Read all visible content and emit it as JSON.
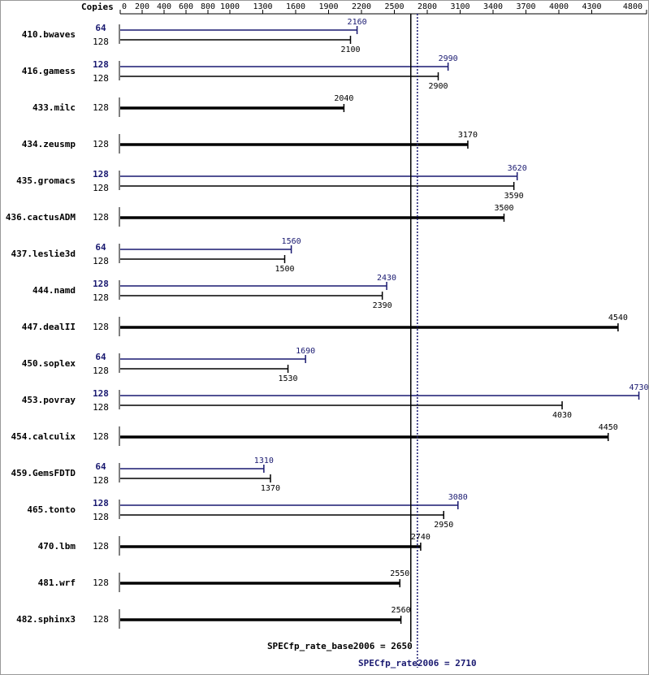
{
  "chart_data": {
    "type": "bar",
    "orientation": "horizontal",
    "axis_label": "Copies",
    "xlim": [
      0,
      4800
    ],
    "xticks": [
      0,
      200,
      400,
      600,
      800,
      1000,
      1300,
      1600,
      1900,
      2200,
      2500,
      2800,
      3100,
      3400,
      3700,
      4000,
      4300,
      4800
    ],
    "categories": [
      "410.bwaves",
      "416.gamess",
      "433.milc",
      "434.zeusmp",
      "435.gromacs",
      "436.cactusADM",
      "437.leslie3d",
      "444.namd",
      "447.dealII",
      "450.soplex",
      "453.povray",
      "454.calculix",
      "459.GemsFDTD",
      "465.tonto",
      "470.lbm",
      "481.wrf",
      "482.sphinx3"
    ],
    "series": [
      {
        "color": "#000000",
        "copies": [
          128,
          128,
          128,
          128,
          128,
          128,
          128,
          128,
          128,
          128,
          128,
          128,
          128,
          128,
          128,
          128,
          128
        ],
        "values": [
          2100,
          2900,
          2040,
          3170,
          3590,
          3500,
          1500,
          2390,
          4540,
          1530,
          4030,
          4450,
          1370,
          2950,
          2740,
          2550,
          2560
        ]
      },
      {
        "color": "#191970",
        "copies": [
          64,
          128,
          null,
          null,
          128,
          null,
          64,
          128,
          null,
          64,
          128,
          null,
          64,
          128,
          null,
          null,
          null
        ],
        "values": [
          2160,
          2990,
          null,
          null,
          3620,
          null,
          1560,
          2430,
          null,
          1690,
          4730,
          null,
          1310,
          3080,
          null,
          null,
          null
        ]
      }
    ],
    "reference_lines": [
      {
        "value": 2650,
        "label": "SPECfp_rate_base2006 = 2650",
        "color": "#000000",
        "style": "solid"
      },
      {
        "value": 2710,
        "label": "SPECfp_rate2006 = 2710",
        "color": "#191970",
        "style": "dotted"
      }
    ]
  }
}
